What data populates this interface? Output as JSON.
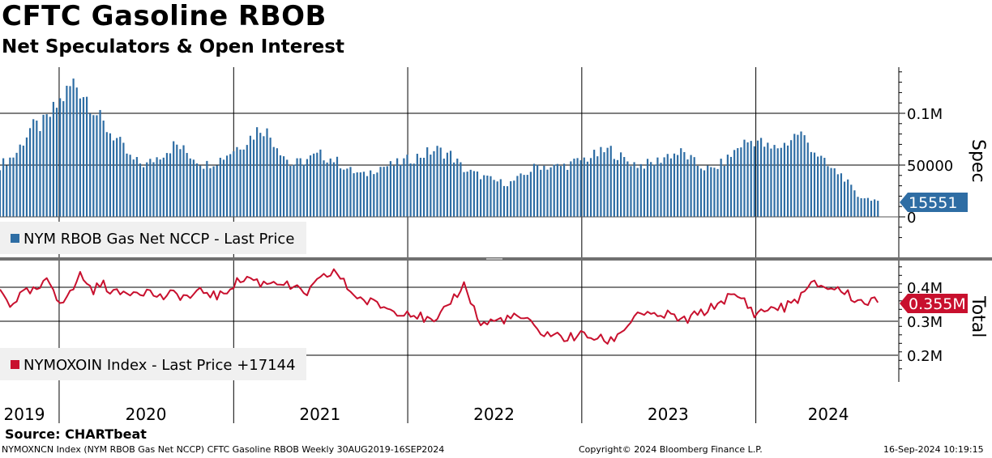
{
  "header": {
    "title": "CFTC Gasoline RBOB",
    "subtitle": "Net Speculators & Open Interest"
  },
  "footer": {
    "source": "Source: CHARTbeat",
    "description": "NYMOXNCN Index (NYM RBOB Gas Net NCCP) CFTC Gasoline RBOB  Weekly 30AUG2019-16SEP2024",
    "copyright": "Copyright© 2024 Bloomberg Finance L.P.",
    "timestamp": "16-Sep-2024 10:19:15"
  },
  "colors": {
    "spec": "#2e6da4",
    "total": "#c8102e",
    "grid": "#000000",
    "legend_bg": "#f0f0f0"
  },
  "chart_data": [
    {
      "type": "bar",
      "panel": "top",
      "axis_label": "Spec",
      "legend": "NYM RBOB Gas Net NCCP - Last Price",
      "last_value_label": "15551",
      "y_ticks": [
        "0.1M",
        "50000",
        "0"
      ],
      "ylim": [
        0,
        140000
      ],
      "x_range": [
        "2019-08-30",
        "2024-09-16"
      ],
      "x_ticks": [
        "2019",
        "2020",
        "2021",
        "2022",
        "2023",
        "2024"
      ],
      "points": [
        [
          "2019-08-30",
          50000
        ],
        [
          "2019-10-01",
          60000
        ],
        [
          "2019-11-01",
          85000
        ],
        [
          "2019-12-01",
          90000
        ],
        [
          "2020-01-01",
          110000
        ],
        [
          "2020-02-01",
          130000
        ],
        [
          "2020-03-01",
          115000
        ],
        [
          "2020-04-01",
          90000
        ],
        [
          "2020-05-01",
          75000
        ],
        [
          "2020-06-01",
          55000
        ],
        [
          "2020-07-01",
          50000
        ],
        [
          "2020-08-01",
          60000
        ],
        [
          "2020-09-01",
          70000
        ],
        [
          "2020-10-01",
          60000
        ],
        [
          "2020-11-01",
          50000
        ],
        [
          "2020-12-01",
          55000
        ],
        [
          "2021-01-01",
          65000
        ],
        [
          "2021-02-01",
          75000
        ],
        [
          "2021-03-01",
          88000
        ],
        [
          "2021-04-01",
          70000
        ],
        [
          "2021-05-01",
          50000
        ],
        [
          "2021-06-01",
          55000
        ],
        [
          "2021-07-01",
          60000
        ],
        [
          "2021-08-01",
          55000
        ],
        [
          "2021-09-01",
          45000
        ],
        [
          "2021-10-01",
          40000
        ],
        [
          "2021-11-01",
          48000
        ],
        [
          "2021-12-01",
          50000
        ],
        [
          "2022-01-01",
          55000
        ],
        [
          "2022-02-01",
          60000
        ],
        [
          "2022-03-01",
          65000
        ],
        [
          "2022-04-01",
          60000
        ],
        [
          "2022-05-01",
          45000
        ],
        [
          "2022-06-01",
          40000
        ],
        [
          "2022-07-01",
          35000
        ],
        [
          "2022-08-01",
          32000
        ],
        [
          "2022-09-01",
          40000
        ],
        [
          "2022-10-01",
          50000
        ],
        [
          "2022-11-01",
          48000
        ],
        [
          "2022-12-01",
          50000
        ],
        [
          "2023-01-01",
          55000
        ],
        [
          "2023-02-01",
          60000
        ],
        [
          "2023-03-01",
          65000
        ],
        [
          "2023-04-01",
          55000
        ],
        [
          "2023-05-01",
          50000
        ],
        [
          "2023-06-01",
          52000
        ],
        [
          "2023-07-01",
          60000
        ],
        [
          "2023-08-01",
          62000
        ],
        [
          "2023-09-01",
          50000
        ],
        [
          "2023-10-01",
          45000
        ],
        [
          "2023-11-01",
          55000
        ],
        [
          "2023-12-01",
          70000
        ],
        [
          "2024-01-01",
          75000
        ],
        [
          "2024-02-01",
          65000
        ],
        [
          "2024-03-01",
          70000
        ],
        [
          "2024-04-01",
          82000
        ],
        [
          "2024-05-01",
          65000
        ],
        [
          "2024-06-01",
          48000
        ],
        [
          "2024-07-01",
          40000
        ],
        [
          "2024-08-01",
          20000
        ],
        [
          "2024-09-16",
          15551
        ]
      ]
    },
    {
      "type": "line",
      "panel": "bottom",
      "axis_label": "Total",
      "legend": "NYMOXOIN Index - Last Price +17144",
      "last_value_label": "0.355M",
      "y_ticks": [
        "0.4M",
        "0.3M",
        "0.2M"
      ],
      "ylim": [
        0.155,
        0.47
      ],
      "points": [
        [
          "2019-08-30",
          0.39
        ],
        [
          "2019-09-20",
          0.35
        ],
        [
          "2019-10-15",
          0.38
        ],
        [
          "2019-11-15",
          0.39
        ],
        [
          "2019-12-10",
          0.42
        ],
        [
          "2020-01-01",
          0.36
        ],
        [
          "2020-01-25",
          0.38
        ],
        [
          "2020-02-15",
          0.44
        ],
        [
          "2020-03-10",
          0.39
        ],
        [
          "2020-04-01",
          0.41
        ],
        [
          "2020-05-01",
          0.38
        ],
        [
          "2020-06-01",
          0.39
        ],
        [
          "2020-07-01",
          0.39
        ],
        [
          "2020-08-01",
          0.37
        ],
        [
          "2020-09-01",
          0.38
        ],
        [
          "2020-10-01",
          0.37
        ],
        [
          "2020-11-01",
          0.39
        ],
        [
          "2020-12-01",
          0.37
        ],
        [
          "2021-01-01",
          0.41
        ],
        [
          "2021-02-01",
          0.43
        ],
        [
          "2021-03-01",
          0.41
        ],
        [
          "2021-04-01",
          0.42
        ],
        [
          "2021-05-01",
          0.4
        ],
        [
          "2021-06-01",
          0.38
        ],
        [
          "2021-07-01",
          0.42
        ],
        [
          "2021-08-01",
          0.45
        ],
        [
          "2021-09-01",
          0.39
        ],
        [
          "2021-10-01",
          0.36
        ],
        [
          "2021-11-01",
          0.35
        ],
        [
          "2021-12-01",
          0.33
        ],
        [
          "2022-01-01",
          0.33
        ],
        [
          "2022-02-01",
          0.31
        ],
        [
          "2022-03-01",
          0.29
        ],
        [
          "2022-04-01",
          0.36
        ],
        [
          "2022-05-01",
          0.41
        ],
        [
          "2022-06-01",
          0.29
        ],
        [
          "2022-07-01",
          0.3
        ],
        [
          "2022-08-01",
          0.31
        ],
        [
          "2022-09-01",
          0.31
        ],
        [
          "2022-10-01",
          0.27
        ],
        [
          "2022-11-01",
          0.26
        ],
        [
          "2022-12-01",
          0.25
        ],
        [
          "2023-01-01",
          0.26
        ],
        [
          "2023-02-01",
          0.25
        ],
        [
          "2023-03-01",
          0.24
        ],
        [
          "2023-04-01",
          0.28
        ],
        [
          "2023-05-01",
          0.33
        ],
        [
          "2023-06-01",
          0.31
        ],
        [
          "2023-07-01",
          0.32
        ],
        [
          "2023-08-01",
          0.3
        ],
        [
          "2023-09-01",
          0.32
        ],
        [
          "2023-10-01",
          0.34
        ],
        [
          "2023-11-01",
          0.37
        ],
        [
          "2023-12-01",
          0.37
        ],
        [
          "2024-01-01",
          0.32
        ],
        [
          "2024-02-01",
          0.34
        ],
        [
          "2024-03-01",
          0.34
        ],
        [
          "2024-04-01",
          0.37
        ],
        [
          "2024-05-01",
          0.41
        ],
        [
          "2024-06-01",
          0.4
        ],
        [
          "2024-07-01",
          0.39
        ],
        [
          "2024-08-01",
          0.36
        ],
        [
          "2024-09-16",
          0.355
        ]
      ]
    }
  ]
}
